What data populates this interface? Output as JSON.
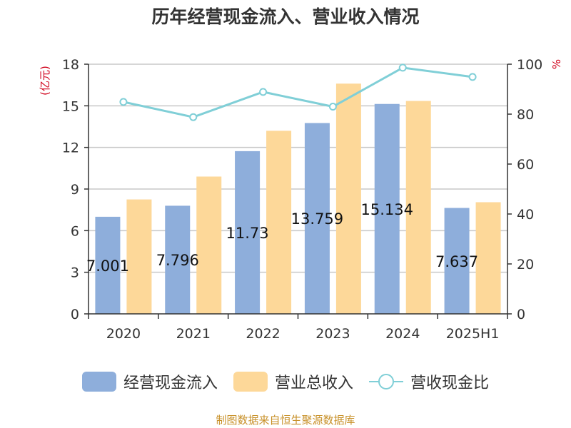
{
  "chart_data": {
    "type": "bar",
    "title": "历年经营现金流入、营业收入情况",
    "categories": [
      "2020",
      "2021",
      "2022",
      "2023",
      "2024",
      "2025H1"
    ],
    "left_axis": {
      "unit_label": "(亿元)",
      "ylim": [
        0,
        18
      ],
      "ticks": [
        "0",
        "3",
        "6",
        "9",
        "12",
        "15",
        "18"
      ]
    },
    "right_axis": {
      "unit_label": "%",
      "ylim": [
        0,
        100
      ],
      "ticks": [
        "0",
        "20",
        "40",
        "60",
        "80",
        "100"
      ]
    },
    "grid": true,
    "legend_position": "bottom",
    "series": [
      {
        "name": "经营现金流入",
        "type": "bar",
        "axis": "left",
        "color": "#8eaedb",
        "values": [
          7.001,
          7.796,
          11.731,
          13.759,
          15.134,
          7.637
        ],
        "labels": [
          "7.001",
          "7.796",
          "11.73",
          "13.759",
          "15.134",
          "7.637"
        ]
      },
      {
        "name": "营业总收入",
        "type": "bar",
        "axis": "left",
        "color": "#fdd899",
        "values": [
          8.25,
          9.9,
          13.2,
          16.6,
          15.35,
          8.05
        ]
      },
      {
        "name": "营收现金比",
        "type": "line",
        "axis": "right",
        "color": "#80cfd7",
        "values": [
          84.9,
          78.8,
          88.9,
          83.0,
          98.6,
          94.9
        ]
      }
    ]
  },
  "footer": {
    "source": "制图数据来自恒生聚源数据库"
  }
}
